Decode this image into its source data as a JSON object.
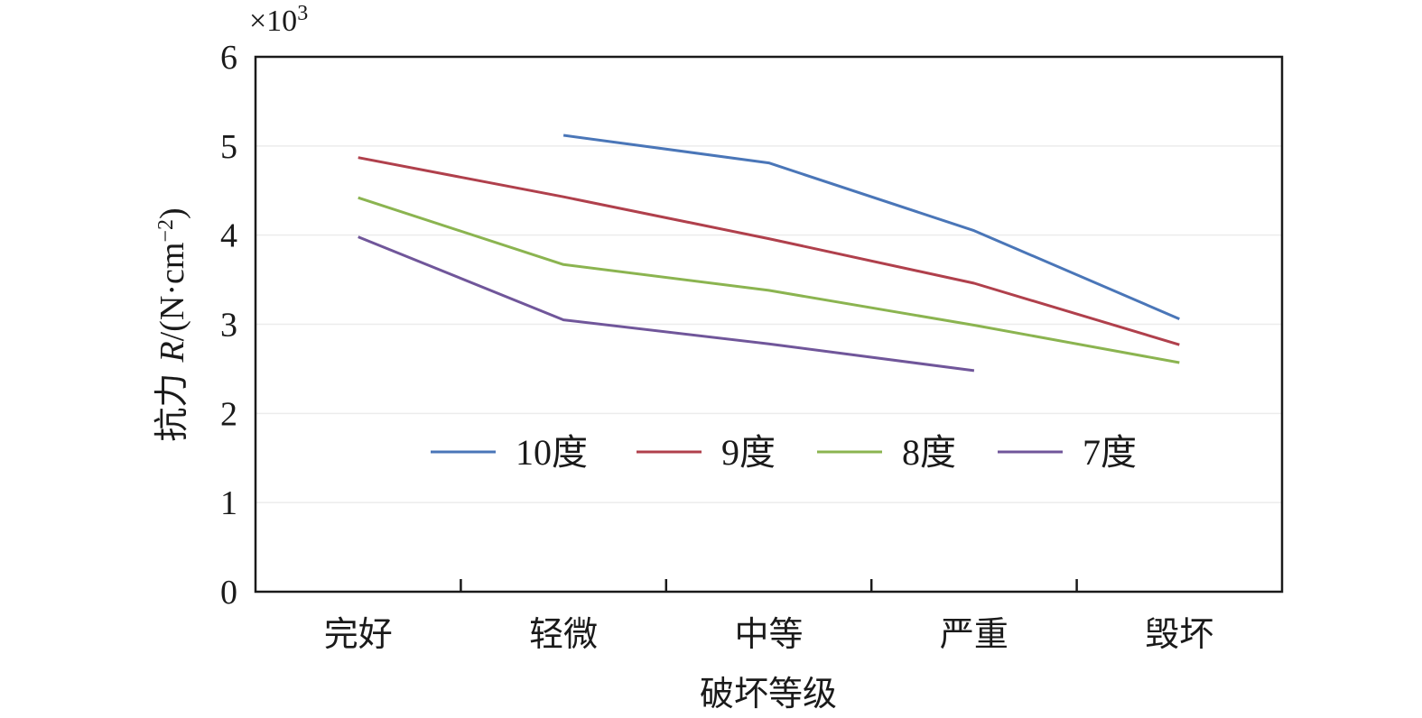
{
  "chart_data": {
    "type": "line",
    "title": "",
    "xlabel": "破坏等级",
    "ylabel": {
      "prefix": "抗力 ",
      "symbol": "R",
      "unit": "/(N·cm",
      "exponent": "−2",
      "close": ")"
    },
    "y_multiplier": {
      "prefix": "×10",
      "exponent": "3"
    },
    "categories": [
      "完好",
      "轻微",
      "中等",
      "严重",
      "毁坏"
    ],
    "ylim": [
      0,
      6
    ],
    "yticks": [
      "0",
      "1",
      "2",
      "3",
      "4",
      "5",
      "6"
    ],
    "grid": true,
    "legend_position": "center",
    "series": [
      {
        "name": "10度",
        "color": "#4a76b8",
        "values": [
          null,
          5.12,
          4.81,
          4.05,
          3.06
        ]
      },
      {
        "name": "9度",
        "color": "#b0404c",
        "values": [
          4.87,
          4.43,
          3.96,
          3.46,
          2.77
        ]
      },
      {
        "name": "8度",
        "color": "#8bb450",
        "values": [
          4.42,
          3.67,
          3.38,
          2.99,
          2.57
        ]
      },
      {
        "name": "7度",
        "color": "#70569a",
        "values": [
          3.98,
          3.05,
          2.78,
          2.48,
          null
        ]
      }
    ]
  }
}
